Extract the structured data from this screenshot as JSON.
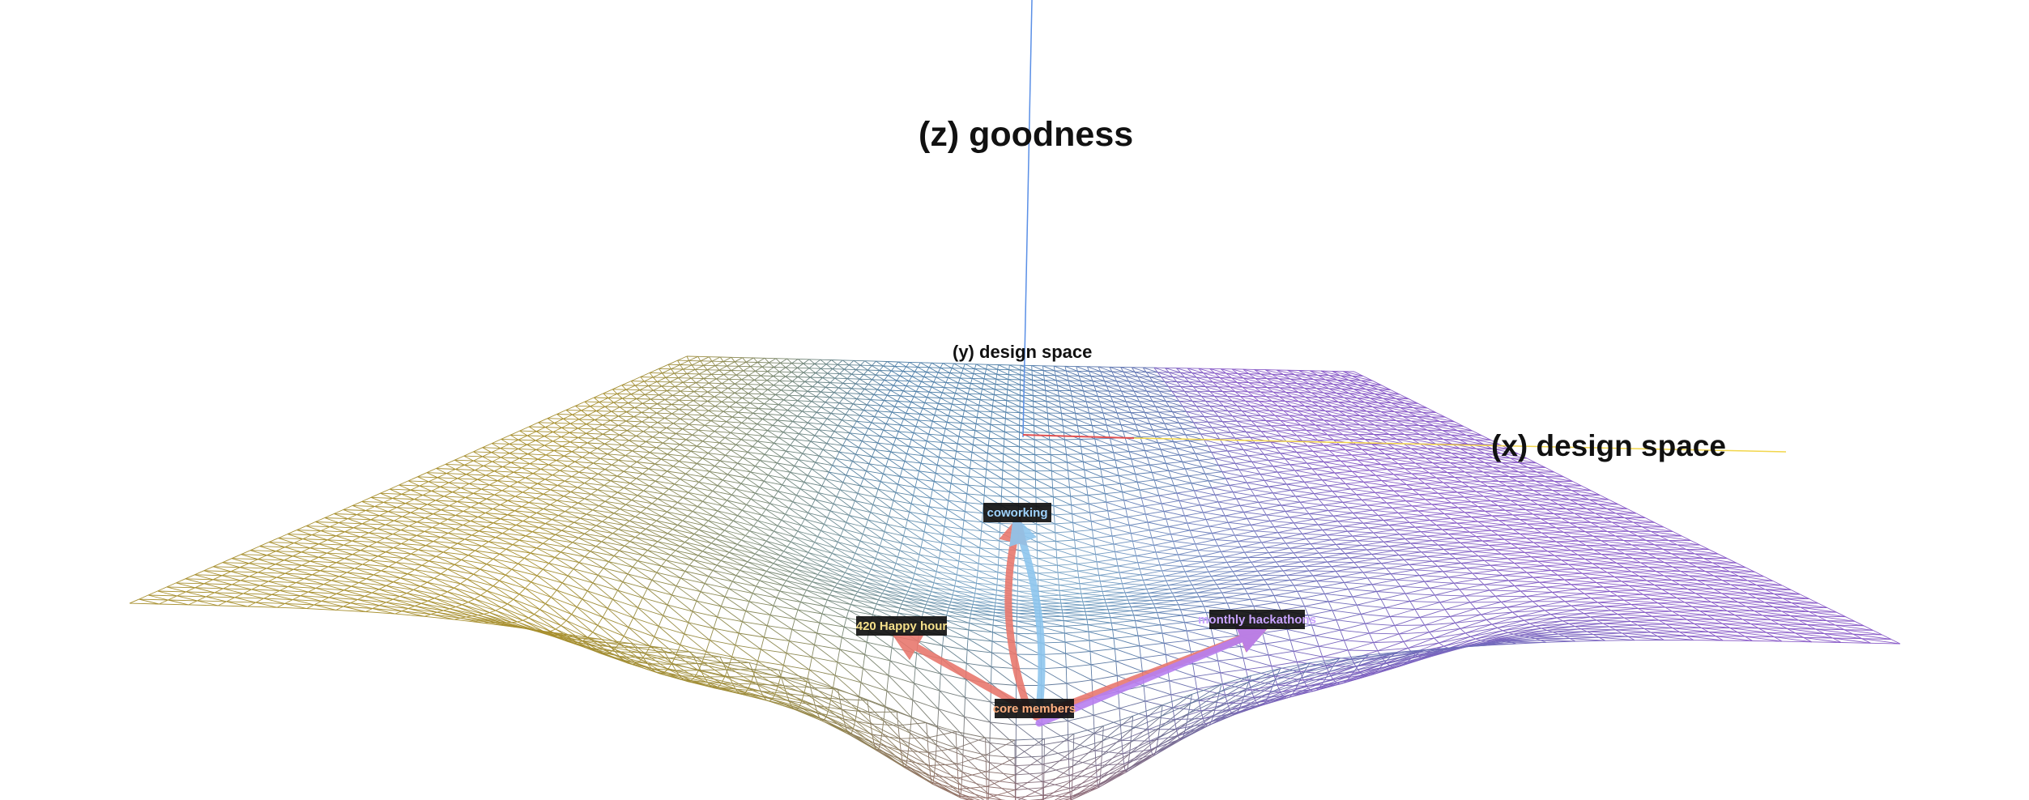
{
  "axes": {
    "z_label": "(z) goodness",
    "y_label": "(y) design space",
    "x_label": "(x) design space",
    "z_color": "#5a8fe6",
    "x_color": "#f2d64b",
    "x_origin_color": "#e05050"
  },
  "surface": {
    "colors": {
      "gold": "#a89030",
      "steel": "#4f7fa8",
      "light_blue": "#9cc4e0",
      "violet": "#8a5cc8",
      "rose": "#a0605a"
    }
  },
  "nodes": [
    {
      "id": "coworking",
      "label": "coworking",
      "text_color": "#9fd3ff"
    },
    {
      "id": "happy-hour",
      "label": "420 Happy hour",
      "text_color": "#f5e08a"
    },
    {
      "id": "hackathons",
      "label": "monthly hackathons",
      "text_color": "#c9a3ff"
    },
    {
      "id": "members",
      "label": "core members",
      "text_color": "#ffb080"
    }
  ],
  "arrows": [
    {
      "from": "members",
      "to": "coworking",
      "color": "#e8786e"
    },
    {
      "from": "members",
      "to": "coworking",
      "color": "#8ec6ee"
    },
    {
      "from": "members",
      "to": "happy-hour",
      "color": "#e8786e"
    },
    {
      "from": "members",
      "to": "hackathons",
      "color": "#e8786e"
    },
    {
      "from": "members",
      "to": "hackathons",
      "color": "#b77ff0"
    }
  ]
}
